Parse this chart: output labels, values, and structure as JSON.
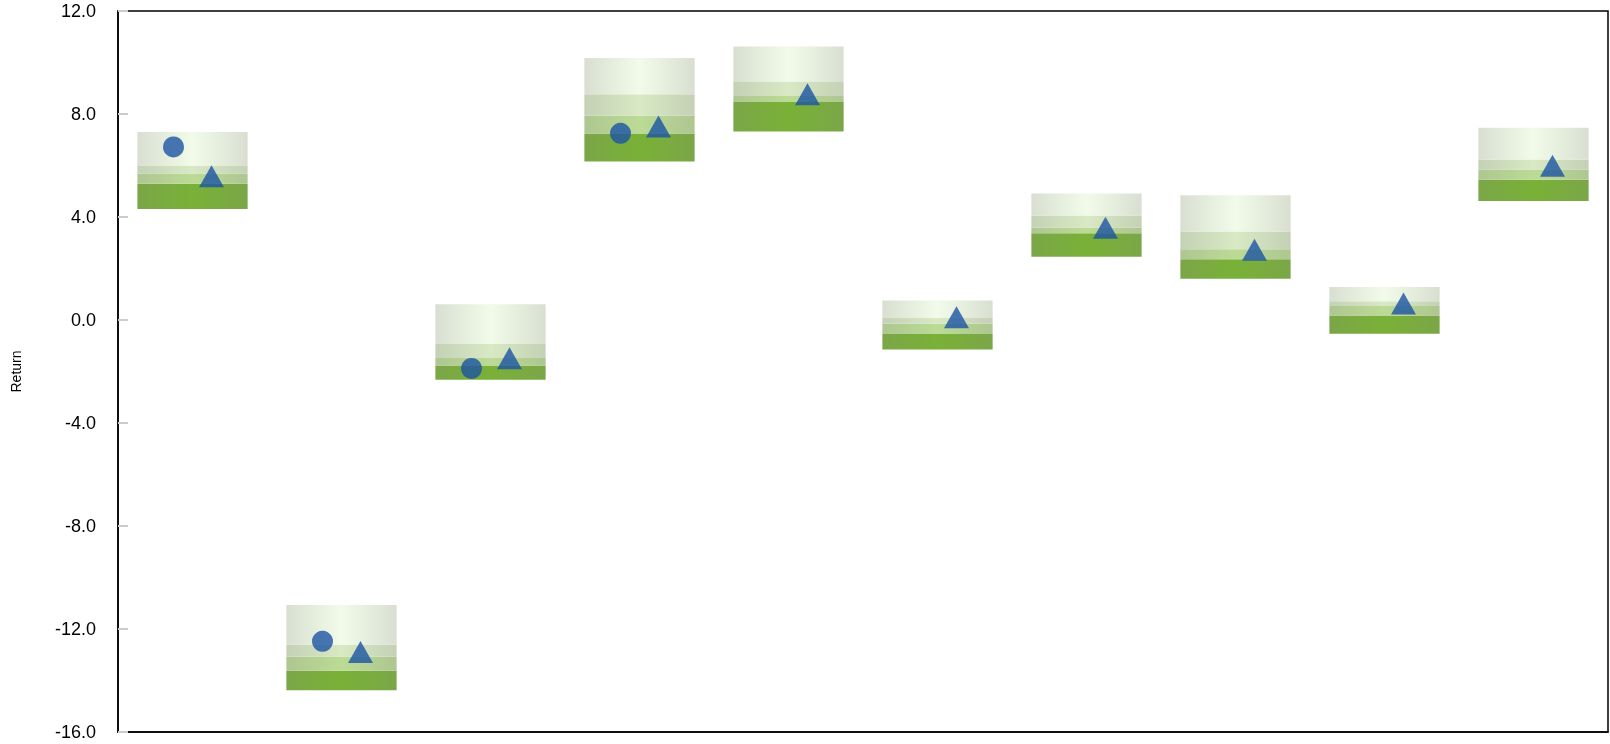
{
  "chart_data": {
    "type": "bar",
    "ylabel": "Return",
    "grid": false,
    "tick_labels": "y",
    "categories": [
      null,
      null,
      null,
      null,
      null,
      null,
      null,
      null,
      null,
      null
    ],
    "ylim": [
      -16,
      12
    ],
    "yticks": [
      {
        "value": -16,
        "label": "-16.0"
      },
      {
        "value": -12,
        "label": "-12.0"
      },
      {
        "value": -8,
        "label": "-8.0"
      },
      {
        "value": -4,
        "label": "-4.0"
      },
      {
        "value": 0,
        "label": "0.0"
      },
      {
        "value": 4,
        "label": "4.0"
      },
      {
        "value": 8,
        "label": "8.0"
      },
      {
        "value": 12,
        "label": "12.0"
      }
    ],
    "series": [
      {
        "color": "#6a9a30",
        "base": [
          4.31,
          -14.38,
          -2.32,
          6.16,
          7.32,
          -1.15,
          2.46,
          1.6,
          -0.53,
          4.62
        ],
        "values": [
          0.98,
          0.76,
          0.55,
          1.08,
          1.15,
          0.61,
          0.91,
          0.76,
          0.7,
          0.83
        ]
      },
      {
        "color": "#a3bf82",
        "base": [
          5.29,
          -13.62,
          -1.77,
          7.24,
          8.47,
          -0.54,
          3.37,
          2.36,
          0.17,
          5.45
        ],
        "values": [
          0.4,
          0.55,
          0.29,
          0.69,
          0.23,
          0.39,
          0.22,
          0.39,
          0.37,
          0.39
        ]
      },
      {
        "color": "#bccbab",
        "base": [
          5.69,
          -13.07,
          -1.48,
          7.93,
          8.7,
          -0.15,
          3.59,
          2.75,
          0.54,
          5.84
        ],
        "values": [
          0.31,
          0.46,
          0.55,
          0.84,
          0.54,
          0.23,
          0.47,
          0.69,
          0.19,
          0.39
        ]
      },
      {
        "color": "#d3dbcb",
        "base": [
          6.0,
          -12.61,
          -0.93,
          8.77,
          9.24,
          0.08,
          4.06,
          3.44,
          0.73,
          6.23
        ],
        "values": [
          1.3,
          1.54,
          1.54,
          1.4,
          1.38,
          0.68,
          0.85,
          1.4,
          0.55,
          1.24
        ]
      },
      {
        "type": "scatter",
        "marker": "circle",
        "color": "#1b54a3",
        "values": [
          6.72,
          -12.48,
          -1.88,
          7.25,
          null,
          null,
          null,
          null,
          null,
          null
        ]
      },
      {
        "type": "scatter",
        "marker": "triangle",
        "color": "#1b54a3",
        "values": [
          5.47,
          -13.01,
          -1.6,
          7.4,
          8.65,
          -0.01,
          3.47,
          2.61,
          0.52,
          5.87
        ]
      }
    ]
  }
}
